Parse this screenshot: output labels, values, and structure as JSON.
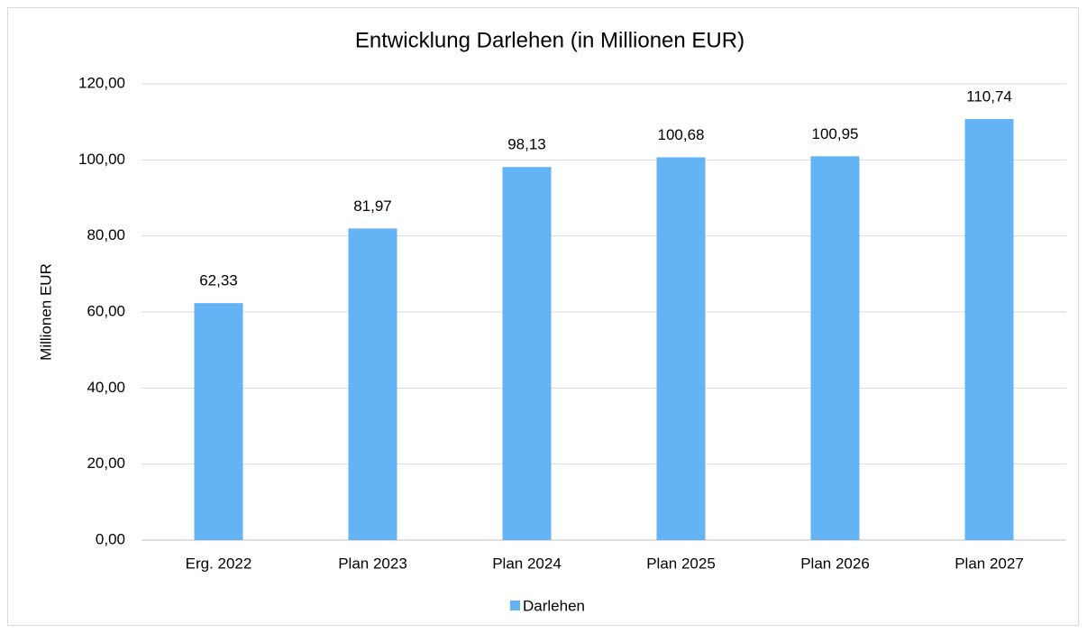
{
  "chart_data": {
    "type": "bar",
    "title": "Entwicklung Darlehen  (in Millionen EUR)",
    "y_label": "Millionen EUR",
    "categories": [
      "Erg. 2022",
      "Plan 2023",
      "Plan 2024",
      "Plan 2025",
      "Plan 2026",
      "Plan 2027"
    ],
    "series": [
      {
        "name": "Darlehen",
        "color": "#63b3f5",
        "values": [
          62.33,
          81.97,
          98.13,
          100.68,
          100.95,
          110.74
        ],
        "value_labels": [
          "62,33",
          "81,97",
          "98,13",
          "100,68",
          "100,95",
          "110,74"
        ]
      }
    ],
    "ylim": [
      0,
      120
    ],
    "yticks": [
      {
        "value": 0,
        "label": "0,00"
      },
      {
        "value": 20,
        "label": "20,00"
      },
      {
        "value": 40,
        "label": "40,00"
      },
      {
        "value": 60,
        "label": "60,00"
      },
      {
        "value": 80,
        "label": "80,00"
      },
      {
        "value": 100,
        "label": "100,00"
      },
      {
        "value": 120,
        "label": "120,00"
      }
    ],
    "grid": true,
    "legend": "bottom"
  }
}
